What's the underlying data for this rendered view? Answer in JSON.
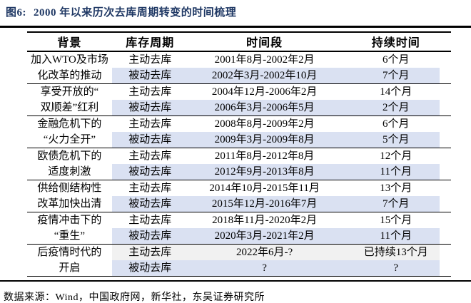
{
  "figure": {
    "label": "图6:",
    "title": "2000 年以来历次去库周期转变的时间梳理"
  },
  "table": {
    "headers": [
      "背景",
      "库存周期",
      "时间段",
      "持续时间"
    ],
    "groups": [
      {
        "background_lines": [
          "加入WTO及市场",
          "化改革的推动"
        ],
        "rows": [
          {
            "cycle": "主动去库",
            "period": "2001年8月-2002年2月",
            "duration": "6个月",
            "highlight": "none"
          },
          {
            "cycle": "被动去库",
            "period": "2002年3月-2002年10月",
            "duration": "7个月",
            "highlight": "blue"
          }
        ]
      },
      {
        "background_lines": [
          "享受开放的“",
          "双顺差”红利"
        ],
        "rows": [
          {
            "cycle": "主动去库",
            "period": "2004年12月-2006年2月",
            "duration": "14个月",
            "highlight": "none"
          },
          {
            "cycle": "被动去库",
            "period": "2006年3月-2006年5月",
            "duration": "2个月",
            "highlight": "blue"
          }
        ]
      },
      {
        "background_lines": [
          "金融危机下的",
          "“火力全开”"
        ],
        "rows": [
          {
            "cycle": "主动去库",
            "period": "2008年8月-2009年2月",
            "duration": "6个月",
            "highlight": "none"
          },
          {
            "cycle": "被动去库",
            "period": "2009年3月-2009年8月",
            "duration": "5个月",
            "highlight": "blue"
          }
        ]
      },
      {
        "background_lines": [
          "欧债危机下的",
          "适度刺激"
        ],
        "rows": [
          {
            "cycle": "主动去库",
            "period": "2011年8月-2012年8月",
            "duration": "12个月",
            "highlight": "none"
          },
          {
            "cycle": "被动去库",
            "period": "2012年9月-2013年8月",
            "duration": "11个月",
            "highlight": "blue"
          }
        ]
      },
      {
        "background_lines": [
          "供给侧结构性",
          "改革加快出清"
        ],
        "rows": [
          {
            "cycle": "主动去库",
            "period": "2014年10月-2015年11月",
            "duration": "13个月",
            "highlight": "none"
          },
          {
            "cycle": "被动去库",
            "period": "2015年12月-2016年7月",
            "duration": "7个月",
            "highlight": "blue"
          }
        ]
      },
      {
        "background_lines": [
          "疫情冲击下的",
          "“重生”"
        ],
        "rows": [
          {
            "cycle": "主动去库",
            "period": "2018年11月-2020年2月",
            "duration": "15个月",
            "highlight": "none"
          },
          {
            "cycle": "被动去库",
            "period": "2020年3月-2021年2月",
            "duration": "11个月",
            "highlight": "blue"
          }
        ]
      },
      {
        "background_lines": [
          "后疫情时代的",
          "开启"
        ],
        "rows": [
          {
            "cycle": "主动去库",
            "period": "2022年6月-?",
            "duration": "已持续13个月",
            "highlight": "gray"
          },
          {
            "cycle": "被动去库",
            "period": "?",
            "duration": "?",
            "highlight": "blue"
          }
        ]
      }
    ]
  },
  "footer": {
    "source": "数据来源：Wind，中国政府网，新华社，东吴证券研究所"
  },
  "colors": {
    "title": "#1F3864",
    "row_blue": "#DAE1F2",
    "row_gray": "#F1F1F1",
    "rule": "#000000"
  }
}
